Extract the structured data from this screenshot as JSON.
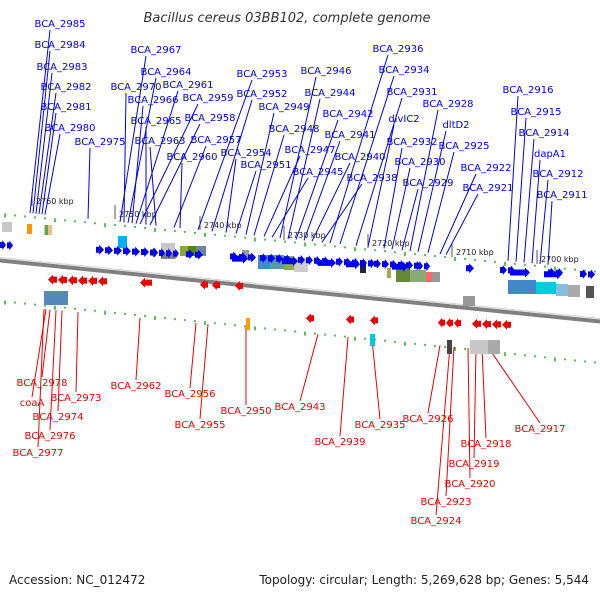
{
  "title": "Bacillus cereus 03BB102, complete genome",
  "colors": {
    "forward": "#0000ee",
    "reverse": "#ee0000",
    "backbone": "#808080",
    "tick": "#22aa22",
    "text": "#222222"
  },
  "kbp_ticks": [
    "2760 kbp",
    "2750 kbp",
    "2740 kbp",
    "2730 kbp",
    "2720 kbp",
    "2710 kbp",
    "2700 kbp"
  ],
  "forward_genes": [
    "BCA_2985",
    "BCA_2984",
    "BCA_2983",
    "BCA_2982",
    "BCA_2981",
    "BCA_2980",
    "BCA_2975",
    "BCA_2967",
    "BCA_2964",
    "BCA_2970",
    "BCA_2961",
    "BCA_2966",
    "BCA_2959",
    "BCA_2965",
    "BCA_2958",
    "BCA_2963",
    "BCA_2957",
    "BCA_2960",
    "BCA_2953",
    "BCA_2952",
    "BCA_2954",
    "BCA_2951",
    "BCA_2949",
    "BCA_2948",
    "BCA_2947",
    "BCA_2945",
    "BCA_2946",
    "BCA_2944",
    "BCA_2942",
    "BCA_2941",
    "BCA_2940",
    "BCA_2938",
    "BCA_2936",
    "BCA_2934",
    "BCA_2931",
    "divIC2",
    "BCA_2932",
    "BCA_2930",
    "BCA_2929",
    "BCA_2928",
    "dltD2",
    "BCA_2925",
    "BCA_2922",
    "BCA_2921",
    "BCA_2916",
    "BCA_2915",
    "BCA_2914",
    "dapA1",
    "BCA_2912",
    "BCA_2911"
  ],
  "reverse_genes": [
    "BCA_2978",
    "coaA",
    "BCA_2973",
    "BCA_2974",
    "BCA_2976",
    "BCA_2977",
    "BCA_2962",
    "BCA_2956",
    "BCA_2955",
    "BCA_2950",
    "BCA_2943",
    "BCA_2939",
    "BCA_2935",
    "BCA_2926",
    "BCA_2918",
    "BCA_2917",
    "BCA_2919",
    "BCA_2920",
    "BCA_2923",
    "BCA_2924"
  ],
  "footer": {
    "accession": "Accession: NC_012472",
    "summary": "Topology: circular; Length: 5,269,628 bp; Genes: 5,544"
  }
}
